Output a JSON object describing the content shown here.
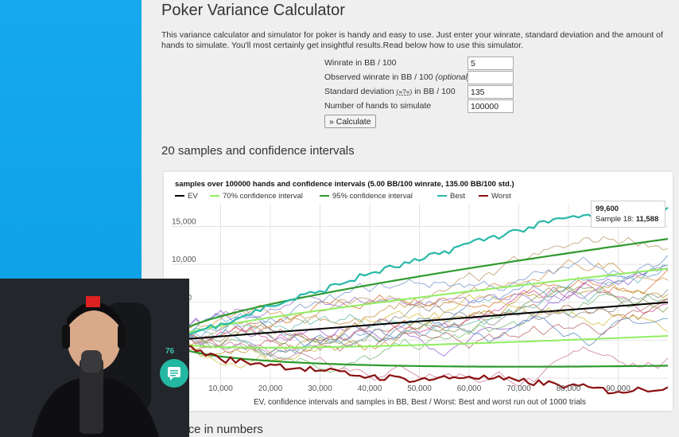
{
  "page": {
    "title": "Poker Variance Calculator",
    "intro": "This variance calculator and simulator for poker is handy and easy to use. Just enter your winrate, standard deviation and the amount of hands to simulate. You'll most certainly get insightful results.Read below how to use this simulator."
  },
  "form": {
    "winrate_label": "Winrate in BB / 100",
    "winrate_value": "5",
    "observed_label_pre": "Observed winrate in BB / 100 ",
    "observed_label_opt": "(optional)",
    "observed_value": "",
    "stddev_label_pre": "Standard deviation ",
    "stddev_link": "(»?«)",
    "stddev_label_post": " in BB / 100",
    "stddev_value": "135",
    "hands_label": "Number of hands to simulate",
    "hands_value": "100000",
    "calculate_label": "» Calculate"
  },
  "sections": {
    "samples_title": "20 samples and confidence intervals",
    "numbers_title": "ance in numbers"
  },
  "tooltip": {
    "x": "99,600",
    "label": "Sample 18: ",
    "value": "11,588"
  },
  "webcam": {
    "chat_count": "76"
  },
  "colors": {
    "ev": "#000000",
    "ci70": "#90ee60",
    "ci95": "#2e9a2e",
    "best": "#29b8a8",
    "worst": "#8b1010"
  },
  "chart_data": {
    "type": "line",
    "title": "samples over 100000 hands and confidence intervals (5.00 BB/100 winrate, 135.00 BB/100 std.)",
    "xlabel": "EV, confidence intervals and samples in BB, Best / Worst: Best and worst run out of 1000 trials",
    "ylabel": "",
    "x_ticks": [
      "10,000",
      "20,000",
      "30,000",
      "40,000",
      "50,000",
      "60,000",
      "70,000",
      "80,000",
      "90,000"
    ],
    "y_ticks": [
      "15,000",
      "10,000",
      "5,000",
      "0"
    ],
    "ylim": [
      -7000,
      18000
    ],
    "xlim": [
      0,
      100000
    ],
    "legend": [
      "EV",
      "70% confidence interval",
      "95% confidence interval",
      "Best",
      "Worst"
    ],
    "series": [
      {
        "name": "EV",
        "x": [
          0,
          100000
        ],
        "y": [
          0,
          5000
        ]
      },
      {
        "name": "Best",
        "x": [
          0,
          10000,
          20000,
          30000,
          40000,
          50000,
          60000,
          70000,
          80000,
          90000,
          100000
        ],
        "y": [
          0,
          2200,
          4500,
          6500,
          8800,
          10500,
          12800,
          14500,
          16200,
          16500,
          17500
        ]
      },
      {
        "name": "Worst",
        "x": [
          0,
          10000,
          20000,
          30000,
          40000,
          50000,
          60000,
          70000,
          80000,
          90000,
          100000
        ],
        "y": [
          0,
          -2500,
          -3200,
          -4000,
          -4800,
          -5200,
          -4800,
          -5400,
          -6000,
          -6800,
          -6200
        ]
      }
    ]
  }
}
